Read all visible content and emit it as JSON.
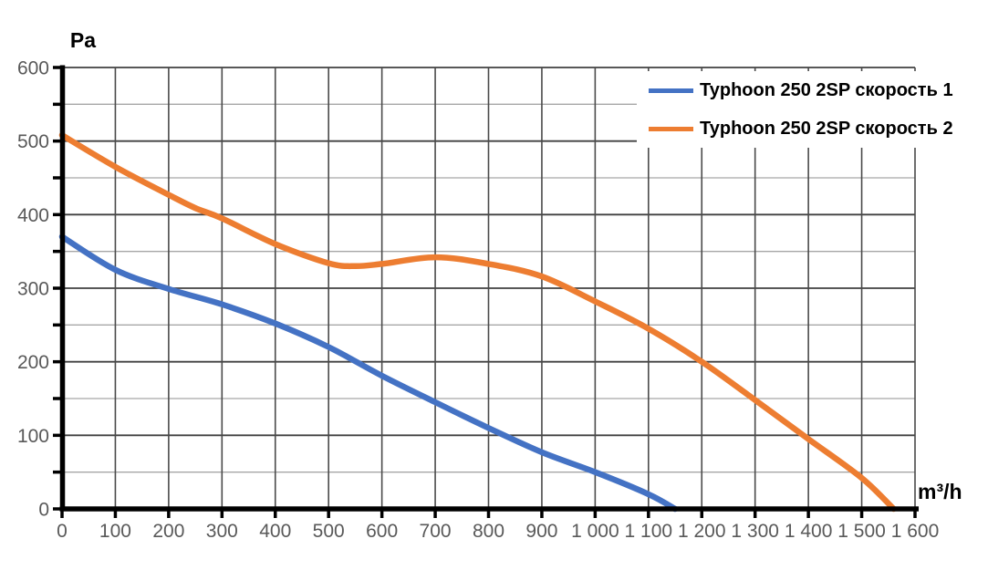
{
  "chart_data": {
    "type": "line",
    "title": "",
    "xlabel": "m³/h",
    "ylabel": "Pa",
    "xlim": [
      0,
      1600
    ],
    "ylim": [
      0,
      600
    ],
    "x_grid_step": 100,
    "y_grid_major_step": 100,
    "y_grid_minor_step": 50,
    "x_tick_step": 100,
    "y_tick_step": 50,
    "grid": true,
    "legend_position": "top-right-inside",
    "x_tick_values": [
      0,
      100,
      200,
      300,
      400,
      500,
      600,
      700,
      800,
      900,
      1000,
      1100,
      1200,
      1300,
      1400,
      1500,
      1600
    ],
    "x_tick_labels": [
      "0",
      "100",
      "200",
      "300",
      "400",
      "500",
      "600",
      "700",
      "800",
      "900",
      "1 000",
      "1 100",
      "1 200",
      "1 300",
      "1 400",
      "1 500",
      "1 600"
    ],
    "y_tick_values": [
      0,
      100,
      200,
      300,
      400,
      500,
      600
    ],
    "y_tick_labels": [
      "0",
      "100",
      "200",
      "300",
      "400",
      "500",
      "600"
    ],
    "series": [
      {
        "name": "Typhoon 250 2SP скорость 1",
        "color": "#4472C4",
        "points": [
          [
            0,
            370
          ],
          [
            100,
            325
          ],
          [
            200,
            299
          ],
          [
            300,
            278
          ],
          [
            400,
            252
          ],
          [
            500,
            220
          ],
          [
            600,
            181
          ],
          [
            700,
            145
          ],
          [
            800,
            110
          ],
          [
            900,
            77
          ],
          [
            1000,
            50
          ],
          [
            1100,
            20
          ],
          [
            1150,
            0
          ]
        ]
      },
      {
        "name": "Typhoon 250 2SP скорость 2",
        "color": "#ED7D31",
        "points": [
          [
            0,
            508
          ],
          [
            100,
            465
          ],
          [
            200,
            427
          ],
          [
            250,
            409
          ],
          [
            300,
            395
          ],
          [
            400,
            360
          ],
          [
            500,
            334
          ],
          [
            550,
            330
          ],
          [
            600,
            333
          ],
          [
            700,
            342
          ],
          [
            800,
            333
          ],
          [
            900,
            316
          ],
          [
            1000,
            282
          ],
          [
            1100,
            245
          ],
          [
            1200,
            200
          ],
          [
            1300,
            148
          ],
          [
            1400,
            95
          ],
          [
            1500,
            42
          ],
          [
            1560,
            0
          ]
        ]
      }
    ],
    "colors": {
      "background": "#ffffff",
      "axis": "#000000",
      "tick": "#000000",
      "major_grid": "#404040",
      "minor_grid": "#a6a6a6",
      "vertical_grid": "#4a4a4a",
      "tick_label": "#595959",
      "axis_title": "#000000",
      "legend_text": "#000000"
    }
  }
}
